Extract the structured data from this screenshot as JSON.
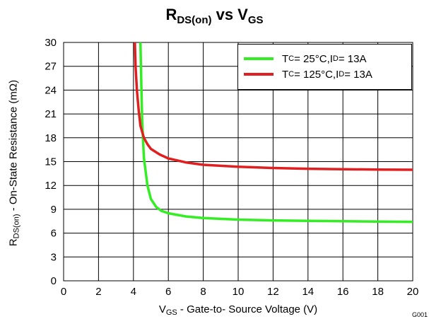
{
  "chart_data": {
    "type": "line",
    "title": {
      "main": "R",
      "sub": "DS(on)",
      "mid": " vs V",
      "sub2": "GS"
    },
    "xlabel": {
      "pre": "V",
      "sub": "GS",
      "post": " - Gate-to- Source Voltage (V)"
    },
    "ylabel": {
      "pre": "R",
      "sub": "DS(on)",
      "post": " - On-State Resistance  (mΩ)"
    },
    "xlim": [
      0,
      20
    ],
    "ylim": [
      0,
      30
    ],
    "x_ticks": [
      "0",
      "2",
      "4",
      "6",
      "8",
      "10",
      "12",
      "14",
      "16",
      "18",
      "20"
    ],
    "y_ticks": [
      "0",
      "3",
      "6",
      "9",
      "12",
      "15",
      "18",
      "21",
      "24",
      "27",
      "30"
    ],
    "grid": true,
    "legend_position": "top-right",
    "figure_code": "G001",
    "series": [
      {
        "name": {
          "a": "T",
          "asub": "C",
          "b": " = 25°C,I ",
          "bsub": "D",
          "c": " = 13A"
        },
        "color": "#33ee22",
        "x": [
          4.4,
          4.45,
          4.5,
          4.6,
          4.8,
          5.0,
          5.3,
          5.6,
          6.0,
          7.0,
          8.0,
          10.0,
          12.0,
          14.0,
          16.0,
          18.0,
          20.0
        ],
        "y": [
          30,
          25,
          20,
          15.5,
          12,
          10.3,
          9.3,
          8.8,
          8.5,
          8.1,
          7.9,
          7.7,
          7.6,
          7.55,
          7.5,
          7.45,
          7.42
        ]
      },
      {
        "name": {
          "a": "T",
          "asub": "C",
          "b": " = 125°C,I ",
          "bsub": "D",
          "c": " = 13A"
        },
        "color": "#e02020",
        "x": [
          4.08,
          4.12,
          4.2,
          4.3,
          4.4,
          4.6,
          4.8,
          5.0,
          5.5,
          6.0,
          7.0,
          8.0,
          10.0,
          12.0,
          14.0,
          16.0,
          18.0,
          20.0
        ],
        "y": [
          30,
          27,
          24,
          21.5,
          19.5,
          18,
          17.2,
          16.6,
          15.9,
          15.4,
          14.9,
          14.6,
          14.35,
          14.2,
          14.1,
          14.05,
          14.0,
          13.98
        ]
      }
    ]
  }
}
